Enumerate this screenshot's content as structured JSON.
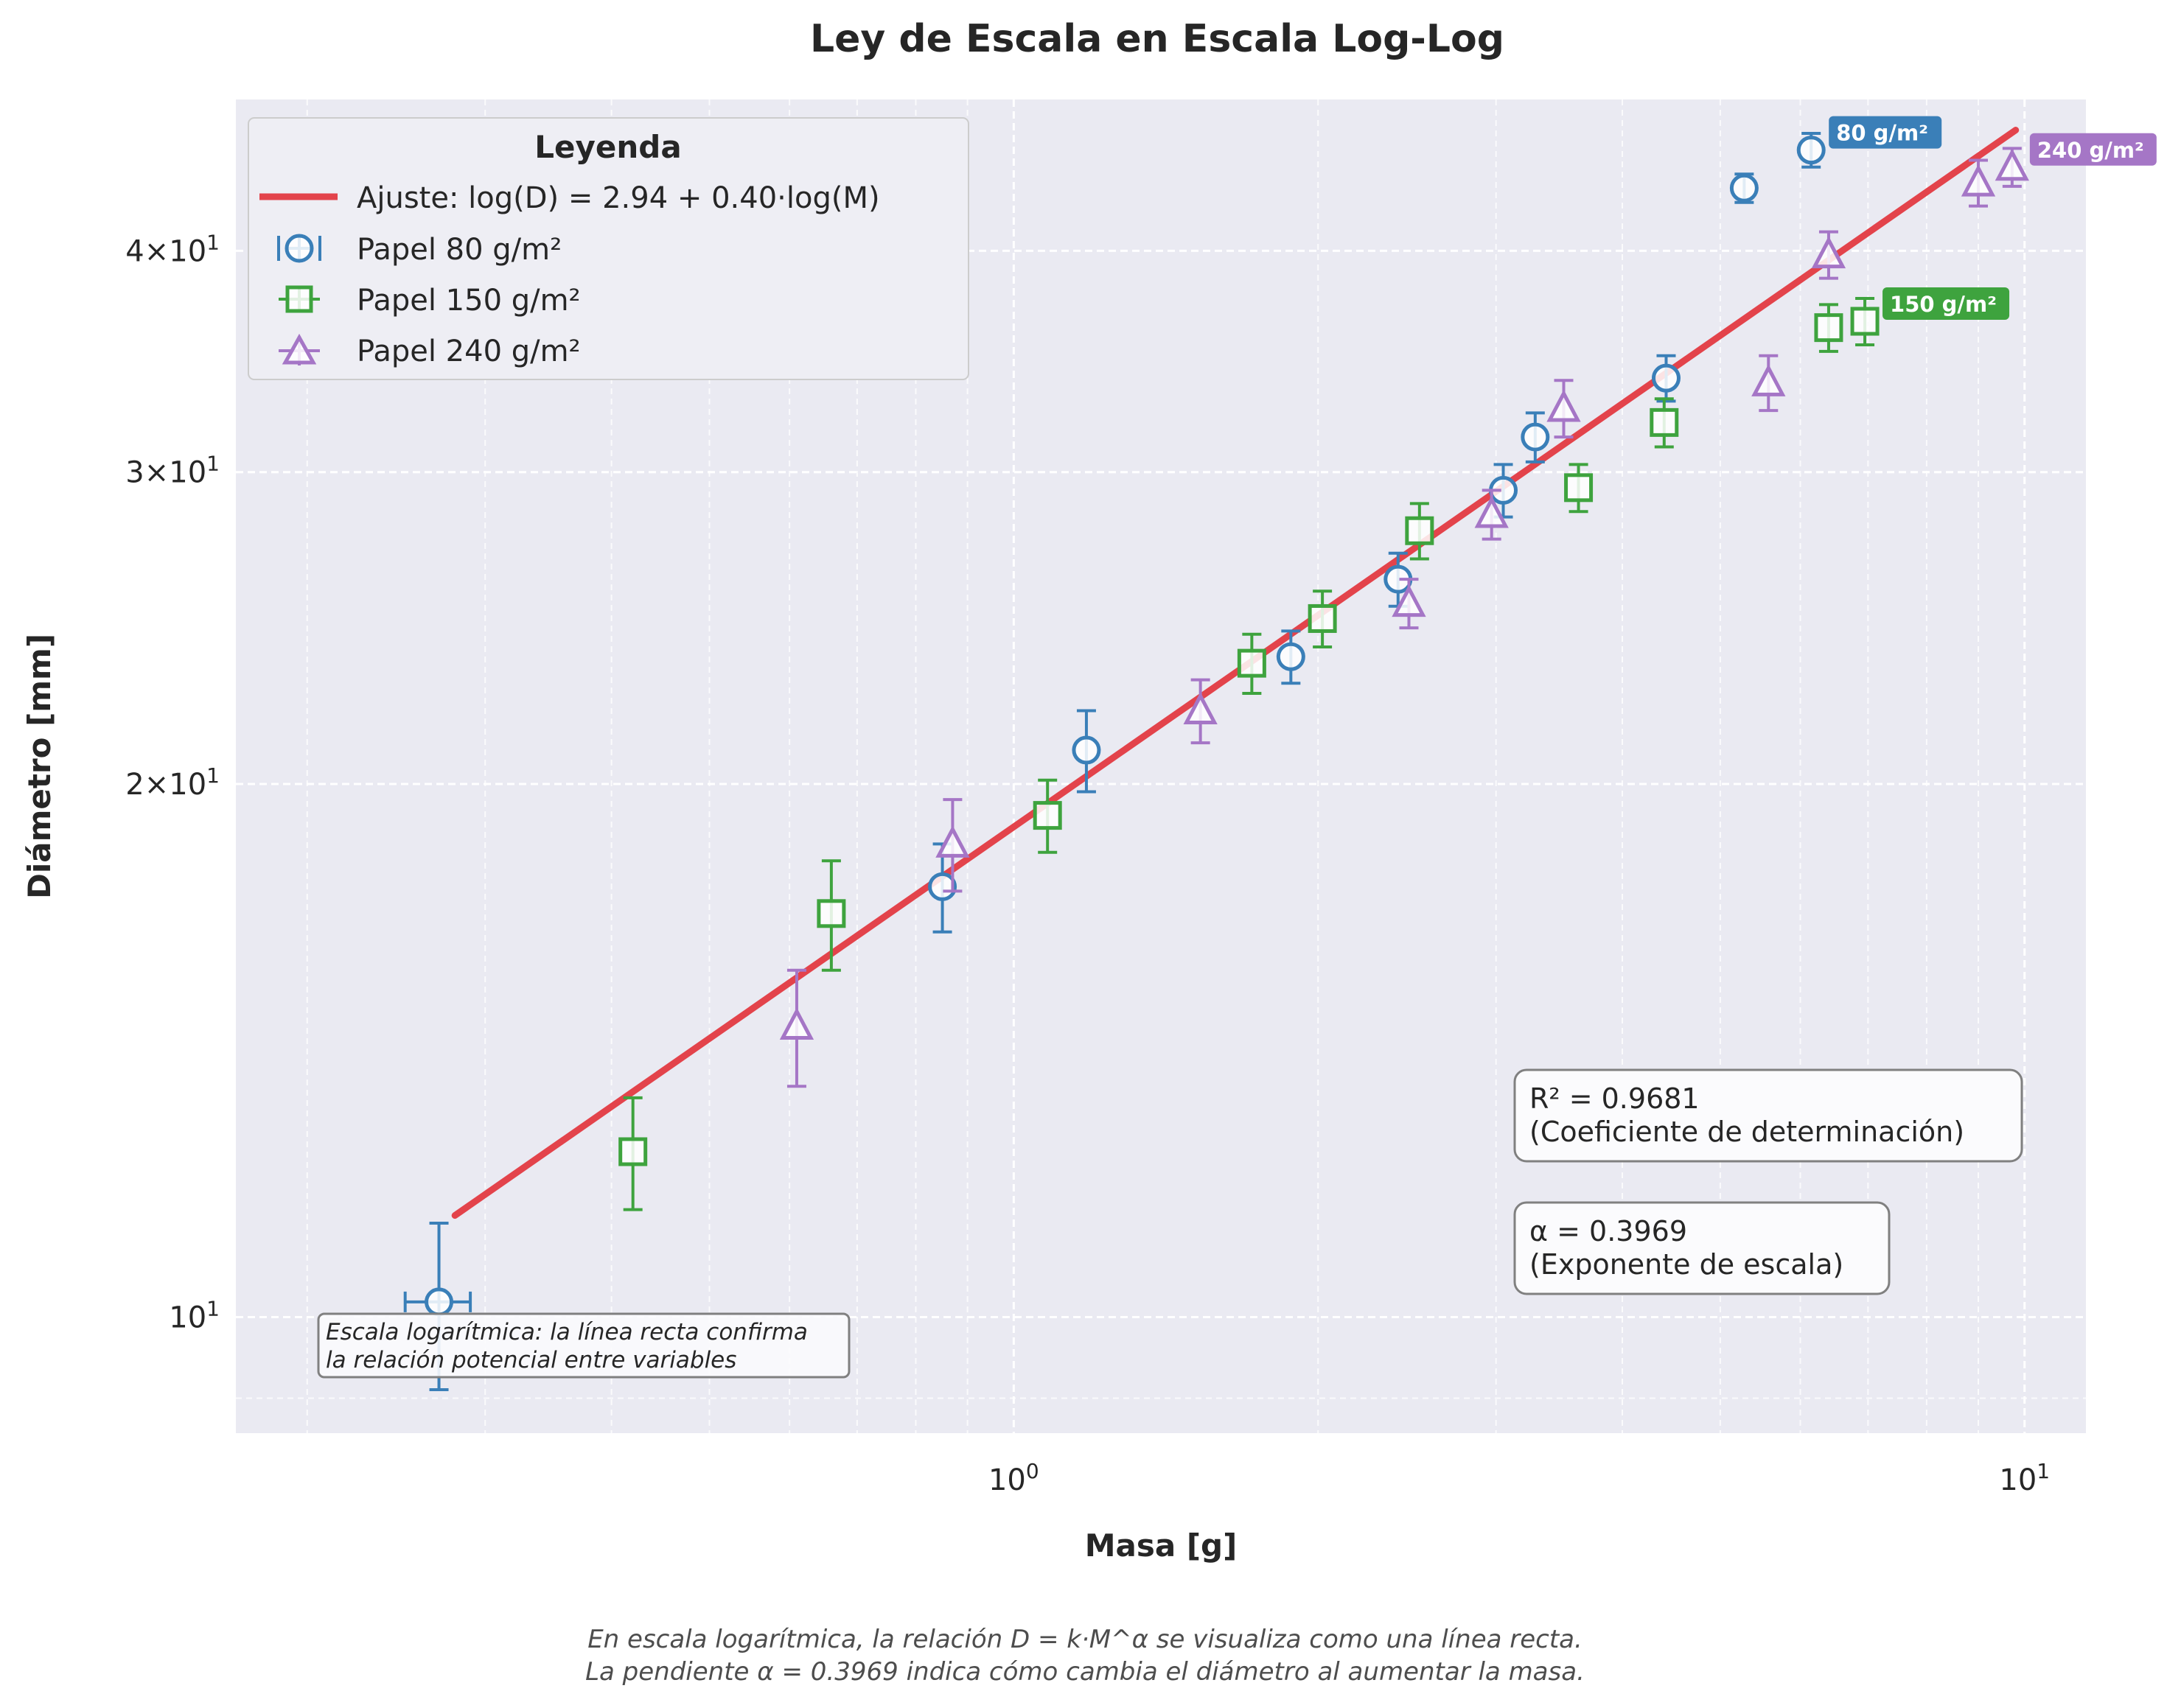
{
  "chart_data": {
    "type": "scatter",
    "title": "Ley de Escala en Escala Log-Log",
    "xlabel": "Masa [g]",
    "ylabel": "Diámetro [mm]",
    "x_scale": "log",
    "y_scale": "log",
    "xlim": [
      0.17,
      11.5
    ],
    "ylim": [
      8.6,
      48.7
    ],
    "x_ticks": [
      {
        "value": 1,
        "label": "10^0"
      },
      {
        "value": 10,
        "label": "10^1"
      }
    ],
    "y_ticks": [
      {
        "value": 10,
        "label": "10^1"
      },
      {
        "value": 20,
        "label": "2×10^1"
      },
      {
        "value": 30,
        "label": "3×10^1"
      },
      {
        "value": 40,
        "label": "4×10^1"
      }
    ],
    "grid": true,
    "legend": {
      "title": "Leyenda",
      "placement": "top-left",
      "entries": [
        "Ajuste: log(D) = 2.94 + 0.40·log(M)",
        "Papel 80 g/m²",
        "Papel 150 g/m²",
        "Papel 240 g/m²"
      ]
    },
    "fit": {
      "name": "Ajuste: log(D) = 2.94 + 0.40·log(M)",
      "color": "#e3434b",
      "x_range": [
        0.28,
        9.8
      ],
      "intercept": 2.94,
      "slope": 0.3969
    },
    "series": [
      {
        "name": "Papel 80 g/m²",
        "marker": "circle",
        "color": "#3a7fb8",
        "points": [
          {
            "x": 0.27,
            "y": 10.2,
            "yerr": 1.1,
            "xerr": 0.02
          },
          {
            "x": 0.85,
            "y": 17.5,
            "yerr": 1.0
          },
          {
            "x": 1.18,
            "y": 20.9,
            "yerr": 1.1
          },
          {
            "x": 1.88,
            "y": 23.6,
            "yerr": 0.8
          },
          {
            "x": 2.4,
            "y": 26.1,
            "yerr": 0.9
          },
          {
            "x": 3.05,
            "y": 29.3,
            "yerr": 1.0
          },
          {
            "x": 3.28,
            "y": 31.4,
            "yerr": 1.0
          },
          {
            "x": 4.42,
            "y": 33.9,
            "yerr": 1.0
          },
          {
            "x": 5.28,
            "y": 43.4,
            "yerr": 0.8
          },
          {
            "x": 6.15,
            "y": 45.6,
            "yerr": 1.0
          }
        ]
      },
      {
        "name": "Papel 150 g/m²",
        "marker": "square",
        "color": "#3ea33e",
        "points": [
          {
            "x": 0.42,
            "y": 12.4,
            "yerr": 0.9
          },
          {
            "x": 0.66,
            "y": 16.9,
            "yerr": 1.2
          },
          {
            "x": 1.08,
            "y": 19.2,
            "yerr": 0.9
          },
          {
            "x": 1.72,
            "y": 23.4,
            "yerr": 0.9
          },
          {
            "x": 2.02,
            "y": 24.8,
            "yerr": 0.9
          },
          {
            "x": 2.52,
            "y": 27.8,
            "yerr": 1.0
          },
          {
            "x": 3.62,
            "y": 29.4,
            "yerr": 0.9
          },
          {
            "x": 4.4,
            "y": 32.0,
            "yerr": 1.0
          },
          {
            "x": 6.4,
            "y": 36.2,
            "yerr": 1.1
          },
          {
            "x": 6.95,
            "y": 36.5,
            "yerr": 1.1
          }
        ]
      },
      {
        "name": "Papel 240 g/m²",
        "marker": "triangle",
        "color": "#a576c6",
        "points": [
          {
            "x": 0.61,
            "y": 14.6,
            "yerr": 1.1
          },
          {
            "x": 0.87,
            "y": 18.5,
            "yerr": 1.1
          },
          {
            "x": 1.53,
            "y": 22.0,
            "yerr": 0.9
          },
          {
            "x": 2.46,
            "y": 25.3,
            "yerr": 0.8
          },
          {
            "x": 2.97,
            "y": 28.4,
            "yerr": 0.9
          },
          {
            "x": 3.5,
            "y": 32.6,
            "yerr": 1.2
          },
          {
            "x": 5.58,
            "y": 33.7,
            "yerr": 1.2
          },
          {
            "x": 6.4,
            "y": 39.8,
            "yerr": 1.2
          },
          {
            "x": 9.0,
            "y": 43.7,
            "yerr": 1.3
          },
          {
            "x": 9.72,
            "y": 44.6,
            "yerr": 1.1
          }
        ]
      }
    ],
    "point_labels": [
      {
        "text": "80 g/m²",
        "color": "#3a7fb8",
        "x": 6.15,
        "y": 45.6
      },
      {
        "text": "150 g/m²",
        "color": "#3ea33e",
        "x": 6.95,
        "y": 36.5
      },
      {
        "text": "240 g/m²",
        "color": "#a576c6",
        "x": 9.72,
        "y": 44.6
      }
    ],
    "annotations": {
      "r2_line1": "R² = 0.9681",
      "r2_line2": "(Coeficiente de determinación)",
      "alpha_line1": "α = 0.3969",
      "alpha_line2": "(Exponente de escala)",
      "note_line1": "Escala logarítmica: la línea recta confirma",
      "note_line2": "la relación potencial entre variables"
    },
    "caption_line1": "En escala logarítmica, la relación D = k·M^α se visualiza como una línea recta.",
    "caption_line2": "La pendiente α = 0.3969 indica cómo cambia el diámetro al aumentar la masa."
  }
}
